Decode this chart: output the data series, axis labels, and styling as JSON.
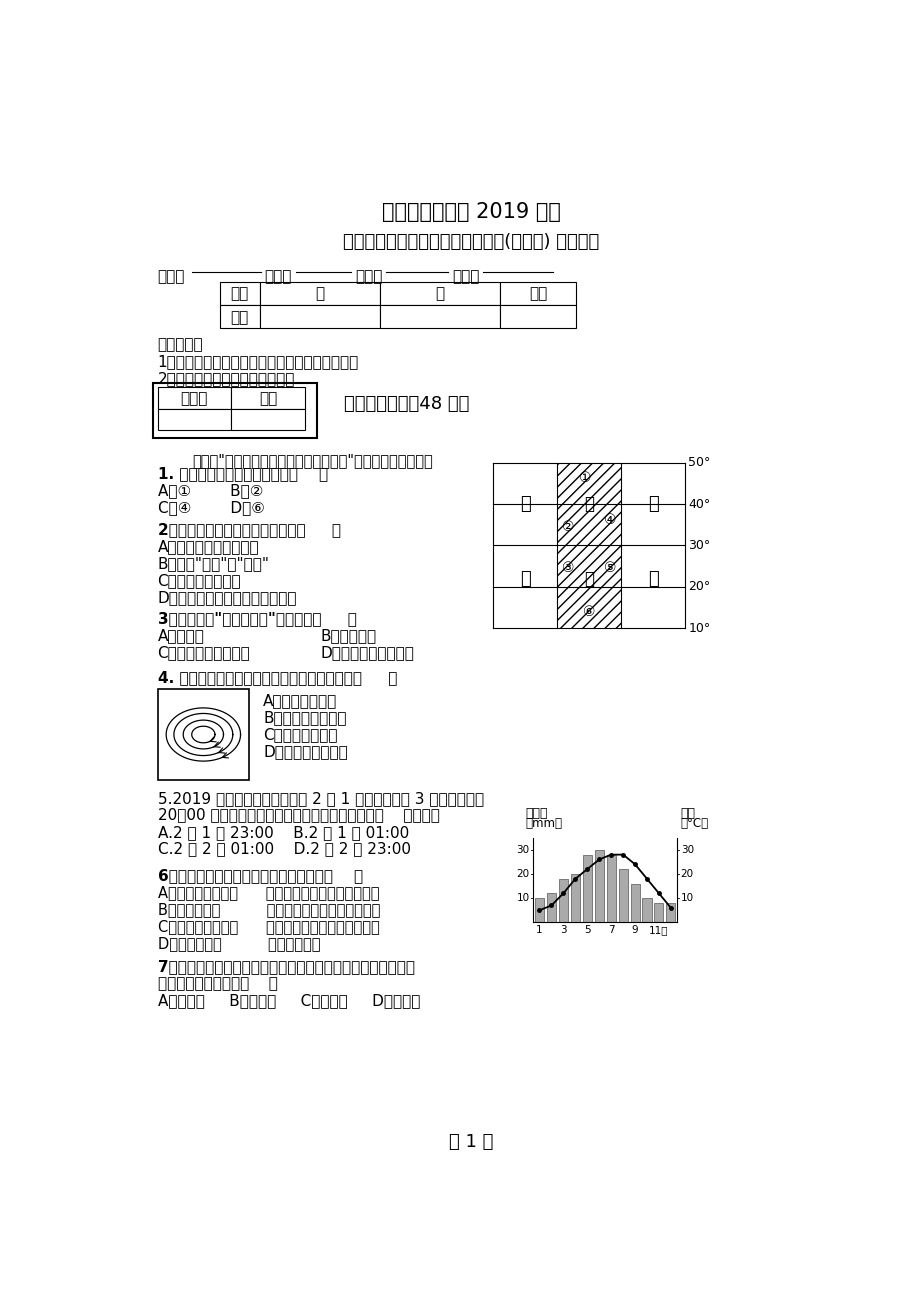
{
  "title1": "四川省驷马中学 2019 年度",
  "title2": "高一地理上学期月考考试模拟试题(无答案) 新人教版",
  "table1_row1": [
    "题号",
    "一",
    "二",
    "总分"
  ],
  "table1_row2": [
    "得分",
    "",
    "",
    ""
  ],
  "notice_title": "注意事项：",
  "notice1": "1．答题前填写好自己的姓名、班级、考号等信息",
  "notice2": "2．请将答案正确填写在答题卡上",
  "section1": "一、单项选择（48 分）",
  "evaluator_table": [
    "评卷人",
    "得分"
  ],
  "intro": "下图为\"北半球局部地区海陆分布模式图\"。读图，完成下题。",
  "q1": "1. 温带海洋气候的分布规律是（    ）",
  "q1a": "A．①        B．②",
  "q1b": "C．④        D．⑥",
  "q2": "2、太阳活动对地球造成的影响是（     ）",
  "q2a": "A．诱发地震和潮汐现象",
  "q2b": "B．产生\"磁暴\"和\"极光\"",
  "q2c": "C．为地球提供能量",
  "q2d": "D．干扰电离层和有线电长波通讯",
  "q3": "3、同一纬度\"高处不胜寒\"的原因是（     ）",
  "q3a": "A．气压低",
  "q3b": "B．空气稀薄",
  "q3c": "C．到达的太阳辐射少",
  "q3d": "D．到达的地面辐射少",
  "q4": "4. 下图中该天气系统所处的位置和性质分别为（     ）",
  "q4a": "A．北半球、气旋",
  "q4b": "B．北半球、反气旋",
  "q4c": "C．南半球、气旋",
  "q4d": "D．南半球、反气旋",
  "q5": "5.2019 年世界拳王争霸赛将于 2 月 1 日在多哈（东 3 区）当地时间",
  "q5b": "20：00 举行开幕式。则成都观众应该在北京时间（    ）时观看",
  "q5a1": "A.2 月 1 日 23:00    B.2 月 1 日 01:00",
  "q5a2": "C.2 月 2 日 01:00    D.2 月 2 日 23:00",
  "q6": "6、读右图，回答该气候的类型及特点是（    ）",
  "q6a": "A．亚热带季风气候      夏季高温多雨，冬季温和少雨",
  "q6b": "B．地中海气候          夏季炎热干燥，冬季温和多雨",
  "q6c": "C．亚热带季风气候      终年高温，有明显的旱雨季节",
  "q6d": "D．地中海气候          终年高温干燥",
  "q7": "7、某考察队在野外考察时，发现某地岩层中含有大量古生物化",
  "q7b": "石，说明此岩层属于（    ）",
  "q7a": "A．花岗岩     B．沉积岩     C．变质岩     D．侵入岩",
  "footer": "第 1 页",
  "climate_precip": [
    10,
    12,
    18,
    20,
    28,
    30,
    28,
    22,
    16,
    10,
    8,
    8
  ],
  "climate_temp": [
    5,
    7,
    12,
    18,
    22,
    26,
    28,
    28,
    24,
    18,
    12,
    6
  ],
  "latitude_labels": [
    "50°",
    "40°",
    "30°",
    "20°",
    "10°"
  ]
}
